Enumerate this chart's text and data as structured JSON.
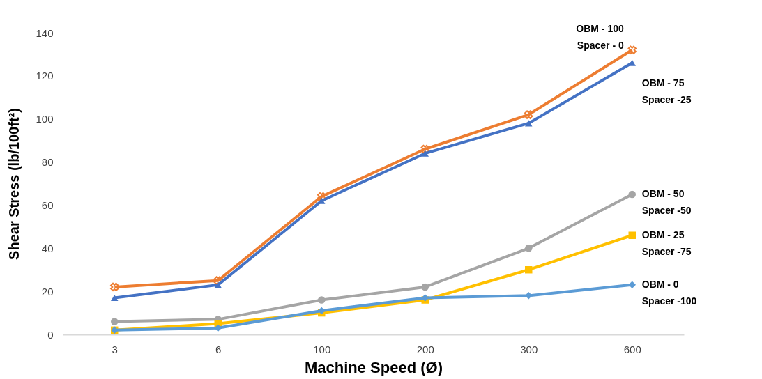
{
  "chart_data": {
    "type": "line",
    "xlabel": "Machine Speed (Ø)",
    "ylabel": "Shear Stress (lb/100ft²)",
    "categories": [
      "3",
      "6",
      "100",
      "200",
      "300",
      "600"
    ],
    "ylim": [
      0,
      140
    ],
    "yticks": [
      0,
      20,
      40,
      60,
      80,
      100,
      120,
      140
    ],
    "grid": false,
    "line_style": "solid",
    "series": [
      {
        "name": "OBM - 100\nSpacer - 0",
        "color": "#ed7d31",
        "marker": "cross",
        "values": [
          22,
          25,
          64,
          86,
          102,
          132
        ]
      },
      {
        "name": "OBM - 75\nSpacer -25",
        "color": "#4472c4",
        "marker": "triangle",
        "values": [
          17,
          23,
          62,
          84,
          98,
          126
        ]
      },
      {
        "name": "OBM - 50\nSpacer -50",
        "color": "#a5a5a5",
        "marker": "circle",
        "values": [
          6,
          7,
          16,
          22,
          40,
          65
        ]
      },
      {
        "name": "OBM - 25\nSpacer -75",
        "color": "#ffc000",
        "marker": "square",
        "values": [
          2,
          5,
          10,
          16,
          30,
          46
        ]
      },
      {
        "name": "OBM - 0\nSpacer -100",
        "color": "#5b9bd5",
        "marker": "diamond",
        "values": [
          2,
          3,
          11,
          17,
          18,
          23
        ]
      }
    ]
  }
}
